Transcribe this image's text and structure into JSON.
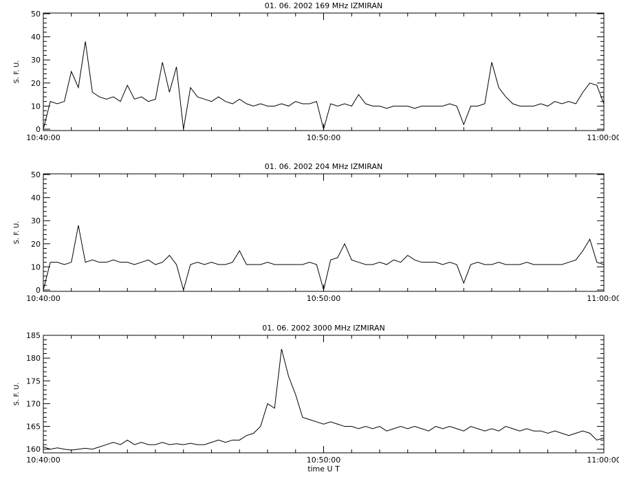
{
  "chart_data": [
    {
      "type": "line",
      "title": "01.  06.  2002    169 MHz    IZMIRAN",
      "y_label": "S. F. U.",
      "color": "#000000",
      "x": [
        0,
        0.25,
        0.5,
        0.75,
        1,
        1.25,
        1.5,
        1.75,
        2,
        2.25,
        2.5,
        2.75,
        3,
        3.25,
        3.5,
        3.75,
        4,
        4.25,
        4.5,
        4.75,
        5,
        5.25,
        5.5,
        5.75,
        6,
        6.25,
        6.5,
        6.75,
        7,
        7.25,
        7.5,
        7.75,
        8,
        8.25,
        8.5,
        8.75,
        9,
        9.25,
        9.5,
        9.75,
        10,
        10.25,
        10.5,
        10.75,
        11,
        11.25,
        11.5,
        11.75,
        12,
        12.25,
        12.5,
        12.75,
        13,
        13.25,
        13.5,
        13.75,
        14,
        14.25,
        14.5,
        14.75,
        15,
        15.25,
        15.5,
        15.75,
        16,
        16.25,
        16.5,
        16.75,
        17,
        17.25,
        17.5,
        17.75,
        18,
        18.25,
        18.5,
        18.75,
        19,
        19.25,
        19.5,
        19.75,
        20
      ],
      "values": [
        0,
        12,
        11,
        12,
        25,
        18,
        38,
        16,
        14,
        13,
        14,
        12,
        19,
        13,
        14,
        12,
        13,
        29,
        16,
        27,
        0,
        18,
        14,
        13,
        12,
        14,
        12,
        11,
        13,
        11,
        10,
        11,
        10,
        10,
        11,
        10,
        12,
        11,
        11,
        12,
        0,
        11,
        10,
        11,
        10,
        15,
        11,
        10,
        10,
        9,
        10,
        10,
        10,
        9,
        10,
        10,
        10,
        10,
        11,
        10,
        2,
        10,
        10,
        11,
        29,
        18,
        14,
        11,
        10,
        10,
        10,
        11,
        10,
        12,
        11,
        12,
        11,
        16,
        20,
        19,
        11
      ],
      "xlim": [
        0,
        20
      ],
      "ylim": [
        -0.6,
        50.3
      ],
      "xticks": [
        {
          "value": 0,
          "label": "10:40:00"
        },
        {
          "value": 10,
          "label": "10:50:00"
        },
        {
          "value": 20,
          "label": "11:00:00"
        }
      ],
      "xminorticks": [
        1,
        2,
        3,
        4,
        5,
        6,
        7,
        8,
        9,
        11,
        12,
        13,
        14,
        15,
        16,
        17,
        18,
        19
      ],
      "yticks": [
        0,
        10,
        20,
        30,
        40,
        50
      ],
      "yminorticks": [
        2,
        4,
        6,
        8,
        12,
        14,
        16,
        18,
        22,
        24,
        26,
        28,
        32,
        34,
        36,
        38,
        42,
        44,
        46,
        48
      ]
    },
    {
      "type": "line",
      "title": "01.  06.  2002    204 MHz    IZMIRAN",
      "y_label": "S. F. U.",
      "color": "#000000",
      "x": [
        0,
        0.25,
        0.5,
        0.75,
        1,
        1.25,
        1.5,
        1.75,
        2,
        2.25,
        2.5,
        2.75,
        3,
        3.25,
        3.5,
        3.75,
        4,
        4.25,
        4.5,
        4.75,
        5,
        5.25,
        5.5,
        5.75,
        6,
        6.25,
        6.5,
        6.75,
        7,
        7.25,
        7.5,
        7.75,
        8,
        8.25,
        8.5,
        8.75,
        9,
        9.25,
        9.5,
        9.75,
        10,
        10.25,
        10.5,
        10.75,
        11,
        11.25,
        11.5,
        11.75,
        12,
        12.25,
        12.5,
        12.75,
        13,
        13.25,
        13.5,
        13.75,
        14,
        14.25,
        14.5,
        14.75,
        15,
        15.25,
        15.5,
        15.75,
        16,
        16.25,
        16.5,
        16.75,
        17,
        17.25,
        17.5,
        17.75,
        18,
        18.25,
        18.5,
        18.75,
        19,
        19.25,
        19.5,
        19.75,
        20
      ],
      "values": [
        0,
        12,
        12,
        11,
        12,
        28,
        12,
        13,
        12,
        12,
        13,
        12,
        12,
        11,
        12,
        13,
        11,
        12,
        15,
        11,
        0,
        11,
        12,
        11,
        12,
        11,
        11,
        12,
        17,
        11,
        11,
        11,
        12,
        11,
        11,
        11,
        11,
        11,
        12,
        11,
        0,
        13,
        14,
        20,
        13,
        12,
        11,
        11,
        12,
        11,
        13,
        12,
        15,
        13,
        12,
        12,
        12,
        11,
        12,
        11,
        3,
        11,
        12,
        11,
        11,
        12,
        11,
        11,
        11,
        12,
        11,
        11,
        11,
        11,
        11,
        12,
        13,
        17,
        22,
        12,
        11
      ],
      "xlim": [
        0,
        20
      ],
      "ylim": [
        -0.6,
        50.3
      ],
      "xticks": [
        {
          "value": 0,
          "label": "10:40:00"
        },
        {
          "value": 10,
          "label": "10:50:00"
        },
        {
          "value": 20,
          "label": "11:00:00"
        }
      ],
      "xminorticks": [
        1,
        2,
        3,
        4,
        5,
        6,
        7,
        8,
        9,
        11,
        12,
        13,
        14,
        15,
        16,
        17,
        18,
        19
      ],
      "yticks": [
        0,
        10,
        20,
        30,
        40,
        50
      ],
      "yminorticks": [
        2,
        4,
        6,
        8,
        12,
        14,
        16,
        18,
        22,
        24,
        26,
        28,
        32,
        34,
        36,
        38,
        42,
        44,
        46,
        48
      ]
    },
    {
      "type": "line",
      "title": "01.  06.  2002    3000 MHz    IZMIRAN",
      "y_label": "S. F. U.",
      "x_label": "time  U T",
      "color": "#000000",
      "x": [
        0,
        0.25,
        0.5,
        0.75,
        1,
        1.25,
        1.5,
        1.75,
        2,
        2.25,
        2.5,
        2.75,
        3,
        3.25,
        3.5,
        3.75,
        4,
        4.25,
        4.5,
        4.75,
        5,
        5.25,
        5.5,
        5.75,
        6,
        6.25,
        6.5,
        6.75,
        7,
        7.25,
        7.5,
        7.75,
        8,
        8.25,
        8.5,
        8.75,
        9,
        9.25,
        9.5,
        9.75,
        10,
        10.25,
        10.5,
        10.75,
        11,
        11.25,
        11.5,
        11.75,
        12,
        12.25,
        12.5,
        12.75,
        13,
        13.25,
        13.5,
        13.75,
        14,
        14.25,
        14.5,
        14.75,
        15,
        15.25,
        15.5,
        15.75,
        16,
        16.25,
        16.5,
        16.75,
        17,
        17.25,
        17.5,
        17.75,
        18,
        18.25,
        18.5,
        18.75,
        19,
        19.25,
        19.5,
        19.75,
        20
      ],
      "values": [
        160.5,
        160,
        160.3,
        160,
        159.8,
        160,
        160.2,
        160,
        160.5,
        161,
        161.5,
        161,
        162,
        161,
        161.5,
        161,
        161,
        161.5,
        161,
        161.2,
        161,
        161.3,
        161,
        161,
        161.5,
        162,
        161.5,
        162,
        162,
        163,
        163.5,
        165,
        170,
        169,
        182,
        176,
        172,
        167,
        166.5,
        166,
        165.5,
        166,
        165.5,
        165,
        165,
        164.5,
        165,
        164.5,
        165,
        164,
        164.5,
        165,
        164.5,
        165,
        164.5,
        164,
        165,
        164.5,
        165,
        164.5,
        164,
        165,
        164.5,
        164,
        164.5,
        164,
        165,
        164.5,
        164,
        164.5,
        164,
        164,
        163.5,
        164,
        163.5,
        163,
        163.5,
        164,
        163.5,
        162,
        162.5
      ],
      "xlim": [
        0,
        20
      ],
      "ylim": [
        159.2,
        185
      ],
      "xticks": [
        {
          "value": 0,
          "label": "10:40:00"
        },
        {
          "value": 10,
          "label": "10:50:00"
        },
        {
          "value": 20,
          "label": "11:00:00"
        }
      ],
      "xminorticks": [
        1,
        2,
        3,
        4,
        5,
        6,
        7,
        8,
        9,
        11,
        12,
        13,
        14,
        15,
        16,
        17,
        18,
        19
      ],
      "yticks": [
        160,
        165,
        170,
        175,
        180,
        185
      ],
      "yminorticks": [
        161,
        162,
        163,
        164,
        166,
        167,
        168,
        169,
        171,
        172,
        173,
        174,
        176,
        177,
        178,
        179,
        181,
        182,
        183,
        184
      ]
    }
  ]
}
